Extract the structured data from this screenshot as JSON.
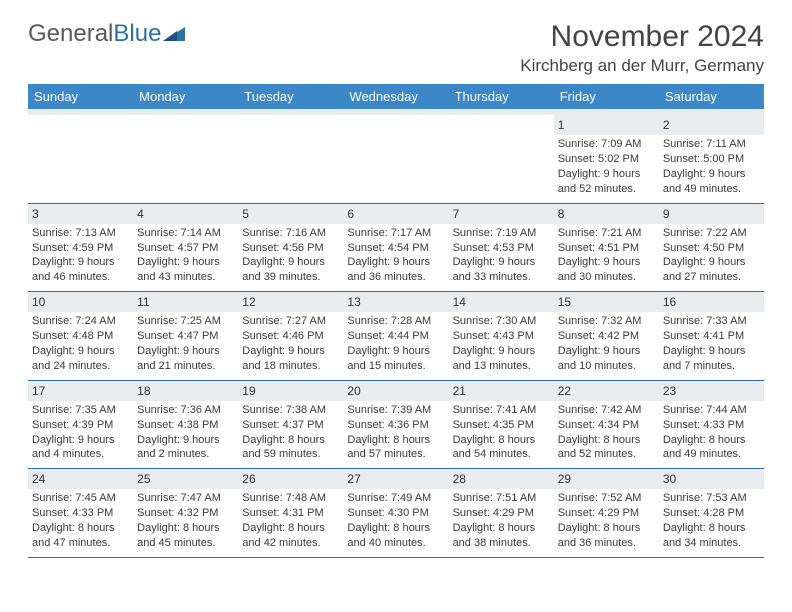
{
  "brand": {
    "name1": "General",
    "name2": "Blue"
  },
  "title": "November 2024",
  "location": "Kirchberg an der Murr, Germany",
  "colors": {
    "header_bg": "#3b87c8",
    "header_text": "#ffffff",
    "daynum_bg": "#e9ecee",
    "row_border": "#2f6fa8",
    "text": "#3a3a3a",
    "brand_gray": "#5a5a5a",
    "brand_blue": "#2f6fa8"
  },
  "weekdays": [
    "Sunday",
    "Monday",
    "Tuesday",
    "Wednesday",
    "Thursday",
    "Friday",
    "Saturday"
  ],
  "weeks": [
    [
      {
        "day": "",
        "sunrise": "",
        "sunset": "",
        "daylight1": "",
        "daylight2": "",
        "empty": true
      },
      {
        "day": "",
        "sunrise": "",
        "sunset": "",
        "daylight1": "",
        "daylight2": "",
        "empty": true
      },
      {
        "day": "",
        "sunrise": "",
        "sunset": "",
        "daylight1": "",
        "daylight2": "",
        "empty": true
      },
      {
        "day": "",
        "sunrise": "",
        "sunset": "",
        "daylight1": "",
        "daylight2": "",
        "empty": true
      },
      {
        "day": "",
        "sunrise": "",
        "sunset": "",
        "daylight1": "",
        "daylight2": "",
        "empty": true
      },
      {
        "day": "1",
        "sunrise": "Sunrise: 7:09 AM",
        "sunset": "Sunset: 5:02 PM",
        "daylight1": "Daylight: 9 hours",
        "daylight2": "and 52 minutes."
      },
      {
        "day": "2",
        "sunrise": "Sunrise: 7:11 AM",
        "sunset": "Sunset: 5:00 PM",
        "daylight1": "Daylight: 9 hours",
        "daylight2": "and 49 minutes."
      }
    ],
    [
      {
        "day": "3",
        "sunrise": "Sunrise: 7:13 AM",
        "sunset": "Sunset: 4:59 PM",
        "daylight1": "Daylight: 9 hours",
        "daylight2": "and 46 minutes."
      },
      {
        "day": "4",
        "sunrise": "Sunrise: 7:14 AM",
        "sunset": "Sunset: 4:57 PM",
        "daylight1": "Daylight: 9 hours",
        "daylight2": "and 43 minutes."
      },
      {
        "day": "5",
        "sunrise": "Sunrise: 7:16 AM",
        "sunset": "Sunset: 4:56 PM",
        "daylight1": "Daylight: 9 hours",
        "daylight2": "and 39 minutes."
      },
      {
        "day": "6",
        "sunrise": "Sunrise: 7:17 AM",
        "sunset": "Sunset: 4:54 PM",
        "daylight1": "Daylight: 9 hours",
        "daylight2": "and 36 minutes."
      },
      {
        "day": "7",
        "sunrise": "Sunrise: 7:19 AM",
        "sunset": "Sunset: 4:53 PM",
        "daylight1": "Daylight: 9 hours",
        "daylight2": "and 33 minutes."
      },
      {
        "day": "8",
        "sunrise": "Sunrise: 7:21 AM",
        "sunset": "Sunset: 4:51 PM",
        "daylight1": "Daylight: 9 hours",
        "daylight2": "and 30 minutes."
      },
      {
        "day": "9",
        "sunrise": "Sunrise: 7:22 AM",
        "sunset": "Sunset: 4:50 PM",
        "daylight1": "Daylight: 9 hours",
        "daylight2": "and 27 minutes."
      }
    ],
    [
      {
        "day": "10",
        "sunrise": "Sunrise: 7:24 AM",
        "sunset": "Sunset: 4:48 PM",
        "daylight1": "Daylight: 9 hours",
        "daylight2": "and 24 minutes."
      },
      {
        "day": "11",
        "sunrise": "Sunrise: 7:25 AM",
        "sunset": "Sunset: 4:47 PM",
        "daylight1": "Daylight: 9 hours",
        "daylight2": "and 21 minutes."
      },
      {
        "day": "12",
        "sunrise": "Sunrise: 7:27 AM",
        "sunset": "Sunset: 4:46 PM",
        "daylight1": "Daylight: 9 hours",
        "daylight2": "and 18 minutes."
      },
      {
        "day": "13",
        "sunrise": "Sunrise: 7:28 AM",
        "sunset": "Sunset: 4:44 PM",
        "daylight1": "Daylight: 9 hours",
        "daylight2": "and 15 minutes."
      },
      {
        "day": "14",
        "sunrise": "Sunrise: 7:30 AM",
        "sunset": "Sunset: 4:43 PM",
        "daylight1": "Daylight: 9 hours",
        "daylight2": "and 13 minutes."
      },
      {
        "day": "15",
        "sunrise": "Sunrise: 7:32 AM",
        "sunset": "Sunset: 4:42 PM",
        "daylight1": "Daylight: 9 hours",
        "daylight2": "and 10 minutes."
      },
      {
        "day": "16",
        "sunrise": "Sunrise: 7:33 AM",
        "sunset": "Sunset: 4:41 PM",
        "daylight1": "Daylight: 9 hours",
        "daylight2": "and 7 minutes."
      }
    ],
    [
      {
        "day": "17",
        "sunrise": "Sunrise: 7:35 AM",
        "sunset": "Sunset: 4:39 PM",
        "daylight1": "Daylight: 9 hours",
        "daylight2": "and 4 minutes."
      },
      {
        "day": "18",
        "sunrise": "Sunrise: 7:36 AM",
        "sunset": "Sunset: 4:38 PM",
        "daylight1": "Daylight: 9 hours",
        "daylight2": "and 2 minutes."
      },
      {
        "day": "19",
        "sunrise": "Sunrise: 7:38 AM",
        "sunset": "Sunset: 4:37 PM",
        "daylight1": "Daylight: 8 hours",
        "daylight2": "and 59 minutes."
      },
      {
        "day": "20",
        "sunrise": "Sunrise: 7:39 AM",
        "sunset": "Sunset: 4:36 PM",
        "daylight1": "Daylight: 8 hours",
        "daylight2": "and 57 minutes."
      },
      {
        "day": "21",
        "sunrise": "Sunrise: 7:41 AM",
        "sunset": "Sunset: 4:35 PM",
        "daylight1": "Daylight: 8 hours",
        "daylight2": "and 54 minutes."
      },
      {
        "day": "22",
        "sunrise": "Sunrise: 7:42 AM",
        "sunset": "Sunset: 4:34 PM",
        "daylight1": "Daylight: 8 hours",
        "daylight2": "and 52 minutes."
      },
      {
        "day": "23",
        "sunrise": "Sunrise: 7:44 AM",
        "sunset": "Sunset: 4:33 PM",
        "daylight1": "Daylight: 8 hours",
        "daylight2": "and 49 minutes."
      }
    ],
    [
      {
        "day": "24",
        "sunrise": "Sunrise: 7:45 AM",
        "sunset": "Sunset: 4:33 PM",
        "daylight1": "Daylight: 8 hours",
        "daylight2": "and 47 minutes."
      },
      {
        "day": "25",
        "sunrise": "Sunrise: 7:47 AM",
        "sunset": "Sunset: 4:32 PM",
        "daylight1": "Daylight: 8 hours",
        "daylight2": "and 45 minutes."
      },
      {
        "day": "26",
        "sunrise": "Sunrise: 7:48 AM",
        "sunset": "Sunset: 4:31 PM",
        "daylight1": "Daylight: 8 hours",
        "daylight2": "and 42 minutes."
      },
      {
        "day": "27",
        "sunrise": "Sunrise: 7:49 AM",
        "sunset": "Sunset: 4:30 PM",
        "daylight1": "Daylight: 8 hours",
        "daylight2": "and 40 minutes."
      },
      {
        "day": "28",
        "sunrise": "Sunrise: 7:51 AM",
        "sunset": "Sunset: 4:29 PM",
        "daylight1": "Daylight: 8 hours",
        "daylight2": "and 38 minutes."
      },
      {
        "day": "29",
        "sunrise": "Sunrise: 7:52 AM",
        "sunset": "Sunset: 4:29 PM",
        "daylight1": "Daylight: 8 hours",
        "daylight2": "and 36 minutes."
      },
      {
        "day": "30",
        "sunrise": "Sunrise: 7:53 AM",
        "sunset": "Sunset: 4:28 PM",
        "daylight1": "Daylight: 8 hours",
        "daylight2": "and 34 minutes."
      }
    ]
  ]
}
